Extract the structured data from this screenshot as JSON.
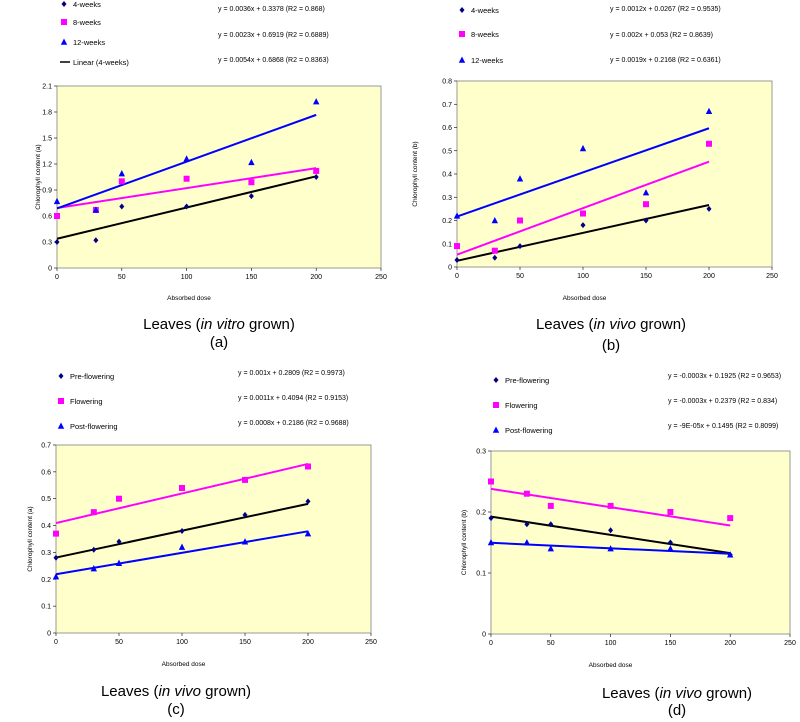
{
  "chart_data": [
    {
      "type": "scatter",
      "caption": {
        "pre": "Leaves (",
        "it": "in vitro",
        "post": " grown)"
      },
      "label": "(a)",
      "xlabel": "Absorbed dose",
      "ylabel": "Chlorophyll content (a)",
      "xlim": [
        0,
        250
      ],
      "ylim": [
        0,
        2.1
      ],
      "xticks": [
        0,
        50,
        100,
        150,
        200,
        250
      ],
      "yticks": [
        "0",
        "0.3",
        "0.6",
        "0.9",
        "1.2",
        "1.5",
        "1.8",
        "2.1"
      ],
      "ytick_values": [
        0,
        0.3,
        0.6,
        0.9,
        1.2,
        1.5,
        1.8,
        2.1
      ],
      "series": [
        {
          "name": "4-weeks",
          "marker": "diamond",
          "color": "#000080",
          "line_color": "#000000",
          "x": [
            0,
            30,
            50,
            100,
            150,
            200
          ],
          "y": [
            0.3,
            0.32,
            0.71,
            0.71,
            0.83,
            1.05
          ],
          "fit": {
            "slope": 0.0036,
            "intercept": 0.3378
          },
          "equation": "y = 0.0036x + 0.3378 (R2 = 0.868)"
        },
        {
          "name": "8-weeks",
          "marker": "square",
          "color": "#ff00ff",
          "line_color": "#ff00ff",
          "x": [
            0,
            30,
            50,
            100,
            150,
            200
          ],
          "y": [
            0.6,
            0.67,
            1.0,
            1.03,
            0.99,
            1.12
          ],
          "fit": {
            "slope": 0.0023,
            "intercept": 0.6919
          },
          "equation": "y = 0.0023x + 0.6919 (R2 = 0.6889)"
        },
        {
          "name": "12-weeks",
          "marker": "triangle",
          "color": "#0000ff",
          "line_color": "#0000ff",
          "x": [
            0,
            30,
            50,
            100,
            150,
            200
          ],
          "y": [
            0.77,
            0.67,
            1.09,
            1.26,
            1.22,
            1.92
          ],
          "fit": {
            "slope": 0.0054,
            "intercept": 0.6868
          },
          "equation": "y = 0.0054x + 0.6868 (R2 = 0.8363)"
        }
      ],
      "extra_legend": "Linear (4-weeks)"
    },
    {
      "type": "scatter",
      "caption": {
        "pre": "Leaves (",
        "it": "in vivo",
        "post": " grown)"
      },
      "label": "(b)",
      "xlabel": "Absorbed dose",
      "ylabel": "Chlorophyll content (b)",
      "xlim": [
        0,
        250
      ],
      "ylim": [
        0,
        0.8
      ],
      "xticks": [
        0,
        50,
        100,
        150,
        200,
        250
      ],
      "yticks": [
        "0",
        "0.1",
        "0.2",
        "0.3",
        "0.4",
        "0.5",
        "0.6",
        "0.7",
        "0.8"
      ],
      "ytick_values": [
        0,
        0.1,
        0.2,
        0.3,
        0.4,
        0.5,
        0.6,
        0.7,
        0.8
      ],
      "series": [
        {
          "name": "4-weeks",
          "marker": "diamond",
          "color": "#000080",
          "line_color": "#000000",
          "x": [
            0,
            30,
            50,
            100,
            150,
            200
          ],
          "y": [
            0.03,
            0.04,
            0.09,
            0.18,
            0.2,
            0.25
          ],
          "fit": {
            "slope": 0.0012,
            "intercept": 0.0267
          },
          "equation": "y = 0.0012x + 0.0267 (R2 = 0.9535)"
        },
        {
          "name": "8-weeks",
          "marker": "square",
          "color": "#ff00ff",
          "line_color": "#ff00ff",
          "x": [
            0,
            30,
            50,
            100,
            150,
            200
          ],
          "y": [
            0.09,
            0.07,
            0.2,
            0.23,
            0.27,
            0.53
          ],
          "fit": {
            "slope": 0.002,
            "intercept": 0.053
          },
          "equation": "y = 0.002x + 0.053 (R2 = 0.8639)"
        },
        {
          "name": "12-weeks",
          "marker": "triangle",
          "color": "#0000ff",
          "line_color": "#0000ff",
          "x": [
            0,
            30,
            50,
            100,
            150,
            200
          ],
          "y": [
            0.22,
            0.2,
            0.38,
            0.51,
            0.32,
            0.67
          ],
          "fit": {
            "slope": 0.0019,
            "intercept": 0.2168
          },
          "equation": "y = 0.0019x + 0.2168 (R2 = 0.6361)"
        }
      ]
    },
    {
      "type": "scatter",
      "caption": {
        "pre": "Leaves (",
        "it": "in vivo",
        "post": " grown)"
      },
      "label": "(c)",
      "xlabel": "Absorbed dose",
      "ylabel": "Chlorophyll content (a)",
      "xlim": [
        0,
        250
      ],
      "ylim": [
        0,
        0.7
      ],
      "xticks": [
        0,
        50,
        100,
        150,
        200,
        250
      ],
      "yticks": [
        "0",
        "0.1",
        "0.2",
        "0.3",
        "0.4",
        "0.5",
        "0.6",
        "0.7"
      ],
      "ytick_values": [
        0,
        0.1,
        0.2,
        0.3,
        0.4,
        0.5,
        0.6,
        0.7
      ],
      "series": [
        {
          "name": "Pre-flowering",
          "marker": "diamond",
          "color": "#000080",
          "line_color": "#000000",
          "x": [
            0,
            30,
            50,
            100,
            150,
            200
          ],
          "y": [
            0.28,
            0.31,
            0.34,
            0.38,
            0.44,
            0.49
          ],
          "fit": {
            "slope": 0.001,
            "intercept": 0.2809
          },
          "equation": "y = 0.001x + 0.2809 (R2 = 0.9973)"
        },
        {
          "name": "Flowering",
          "marker": "square",
          "color": "#ff00ff",
          "line_color": "#ff00ff",
          "x": [
            0,
            30,
            50,
            100,
            150,
            200
          ],
          "y": [
            0.37,
            0.45,
            0.5,
            0.54,
            0.57,
            0.62
          ],
          "fit": {
            "slope": 0.0011,
            "intercept": 0.4094
          },
          "equation": "y = 0.0011x + 0.4094 (R2 = 0.9153)"
        },
        {
          "name": "Post-flowering",
          "marker": "triangle",
          "color": "#0000ff",
          "line_color": "#0000ff",
          "x": [
            0,
            30,
            50,
            100,
            150,
            200
          ],
          "y": [
            0.21,
            0.24,
            0.26,
            0.32,
            0.34,
            0.37
          ],
          "fit": {
            "slope": 0.0008,
            "intercept": 0.2186
          },
          "equation": "y = 0.0008x + 0.2186 (R2 = 0.9688)"
        }
      ]
    },
    {
      "type": "scatter",
      "caption": {
        "pre": "Leaves (",
        "it": "in vivo",
        "post": " grown)"
      },
      "label": "(d)",
      "xlabel": "Absorbed dose",
      "ylabel": "Chlorophyll content (b)",
      "xlim": [
        0,
        250
      ],
      "ylim": [
        0,
        0.3
      ],
      "xticks": [
        0,
        50,
        100,
        150,
        200,
        250
      ],
      "yticks": [
        "0",
        "0.1",
        "0.2",
        "0.3"
      ],
      "ytick_values": [
        0,
        0.1,
        0.2,
        0.3
      ],
      "series": [
        {
          "name": "Pre-flowering",
          "marker": "diamond",
          "color": "#000080",
          "line_color": "#000000",
          "x": [
            0,
            30,
            50,
            100,
            150,
            200
          ],
          "y": [
            0.19,
            0.18,
            0.18,
            0.17,
            0.15,
            0.13
          ],
          "fit": {
            "slope": -0.0003,
            "intercept": 0.1925
          },
          "equation": "y = -0.0003x + 0.1925 (R2 = 0.9653)"
        },
        {
          "name": "Flowering",
          "marker": "square",
          "color": "#ff00ff",
          "line_color": "#ff00ff",
          "x": [
            0,
            30,
            50,
            100,
            150,
            200
          ],
          "y": [
            0.25,
            0.23,
            0.21,
            0.21,
            0.2,
            0.19
          ],
          "fit": {
            "slope": -0.0003,
            "intercept": 0.2379
          },
          "equation": "y = -0.0003x + 0.2379 (R2 = 0.834)"
        },
        {
          "name": "Post-flowering",
          "marker": "triangle",
          "color": "#0000ff",
          "line_color": "#0000ff",
          "x": [
            0,
            30,
            50,
            100,
            150,
            200
          ],
          "y": [
            0.15,
            0.15,
            0.14,
            0.14,
            0.14,
            0.13
          ],
          "fit": {
            "slope": -9e-05,
            "intercept": 0.1495
          },
          "equation": "y = -9E-05x + 0.1495 (R2 = 0.8099)"
        }
      ]
    }
  ],
  "colors": {
    "plot_bg": "#ffffcc",
    "axis": "#808080"
  }
}
